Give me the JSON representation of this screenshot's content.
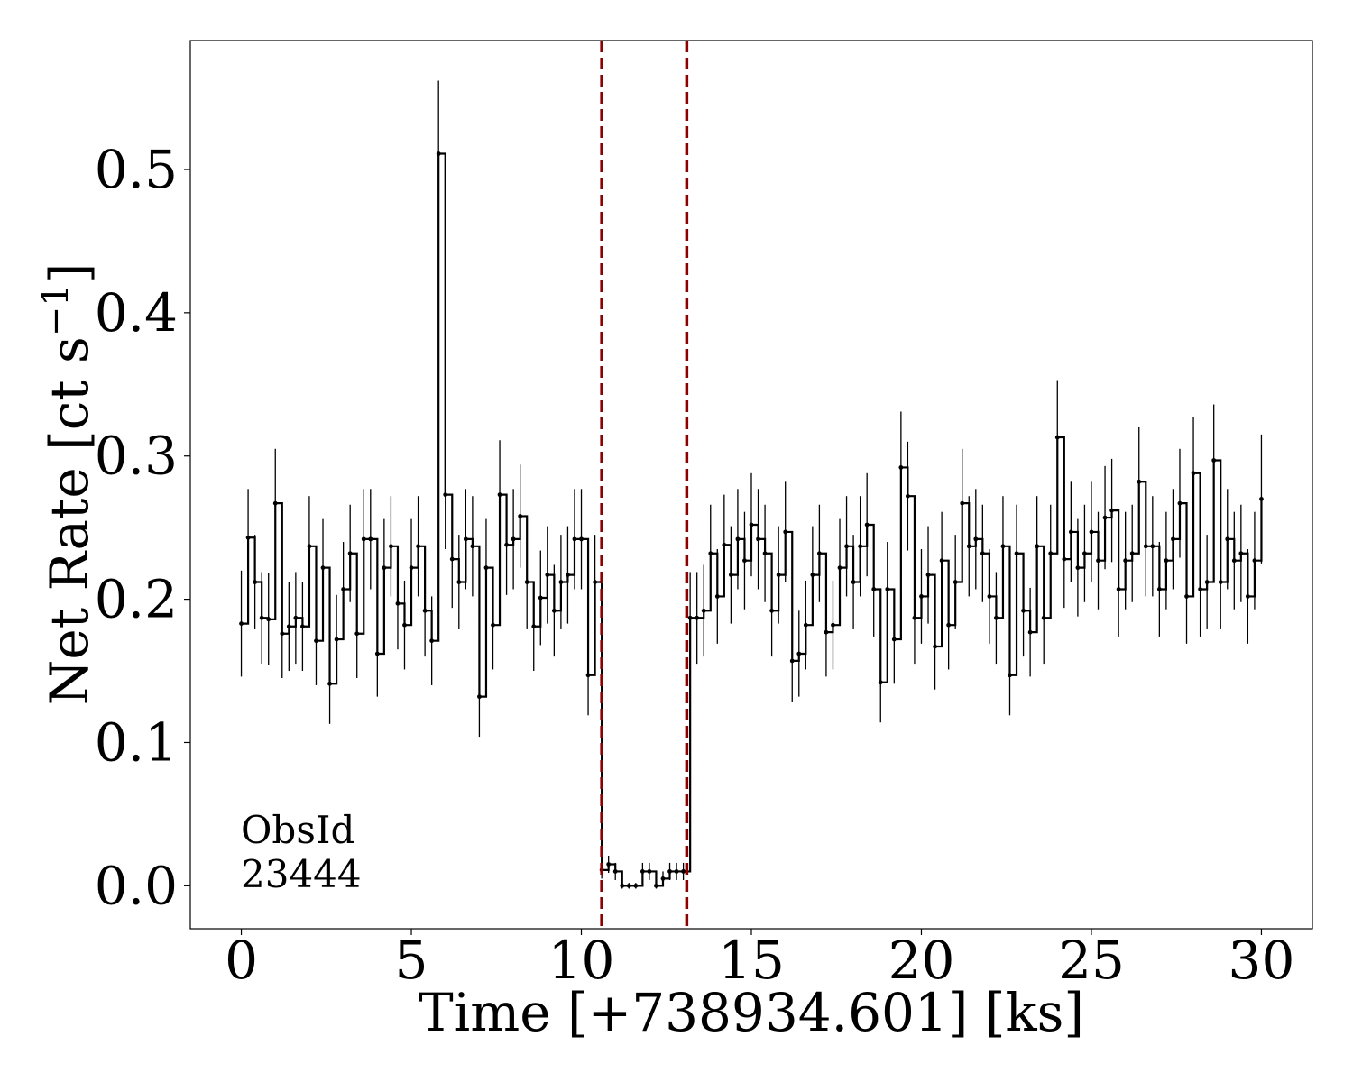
{
  "chart_data": {
    "type": "line",
    "xlabel": "Time [+738934.601] [ks]",
    "ylabel_main": "Net Rate [ct s",
    "ylabel_sup": "−1",
    "ylabel_end": "]",
    "xlim": [
      -1.5,
      31.5
    ],
    "ylim": [
      -0.03,
      0.59
    ],
    "xticks": [
      0,
      5,
      10,
      15,
      20,
      25,
      30
    ],
    "xtick_labels": [
      "0",
      "5",
      "10",
      "15",
      "20",
      "25",
      "30"
    ],
    "yticks": [
      0.0,
      0.1,
      0.2,
      0.3,
      0.4,
      0.5
    ],
    "ytick_labels": [
      "0.0",
      "0.1",
      "0.2",
      "0.3",
      "0.4",
      "0.5"
    ],
    "annotation": [
      "ObsId",
      "23444"
    ],
    "vlines": [
      10.6,
      13.1
    ],
    "colors": {
      "line": "#000000",
      "vline": "#8b0000"
    },
    "series": [
      {
        "values": [
          [
            0.0,
            0.183,
            0.037
          ],
          [
            0.2,
            0.243,
            0.034
          ],
          [
            0.4,
            0.212,
            0.033
          ],
          [
            0.6,
            0.187,
            0.032
          ],
          [
            0.8,
            0.186,
            0.032
          ],
          [
            1.0,
            0.267,
            0.038
          ],
          [
            1.2,
            0.176,
            0.031
          ],
          [
            1.4,
            0.181,
            0.031
          ],
          [
            1.6,
            0.187,
            0.032
          ],
          [
            1.8,
            0.181,
            0.031
          ],
          [
            2.0,
            0.237,
            0.035
          ],
          [
            2.2,
            0.171,
            0.031
          ],
          [
            2.4,
            0.222,
            0.034
          ],
          [
            2.6,
            0.141,
            0.028
          ],
          [
            2.8,
            0.172,
            0.031
          ],
          [
            3.0,
            0.207,
            0.033
          ],
          [
            3.2,
            0.232,
            0.034
          ],
          [
            3.4,
            0.176,
            0.031
          ],
          [
            3.6,
            0.242,
            0.035
          ],
          [
            3.8,
            0.242,
            0.035
          ],
          [
            4.0,
            0.162,
            0.03
          ],
          [
            4.2,
            0.222,
            0.034
          ],
          [
            4.4,
            0.237,
            0.035
          ],
          [
            4.6,
            0.197,
            0.032
          ],
          [
            4.8,
            0.182,
            0.031
          ],
          [
            5.0,
            0.222,
            0.034
          ],
          [
            5.2,
            0.237,
            0.035
          ],
          [
            5.4,
            0.192,
            0.032
          ],
          [
            5.6,
            0.171,
            0.031
          ],
          [
            5.8,
            0.511,
            0.051
          ],
          [
            6.0,
            0.273,
            0.038
          ],
          [
            6.2,
            0.228,
            0.034
          ],
          [
            6.4,
            0.212,
            0.033
          ],
          [
            6.6,
            0.242,
            0.035
          ],
          [
            6.8,
            0.237,
            0.035
          ],
          [
            7.0,
            0.132,
            0.028
          ],
          [
            7.2,
            0.222,
            0.034
          ],
          [
            7.4,
            0.182,
            0.031
          ],
          [
            7.6,
            0.273,
            0.038
          ],
          [
            7.8,
            0.238,
            0.035
          ],
          [
            8.0,
            0.242,
            0.035
          ],
          [
            8.2,
            0.258,
            0.036
          ],
          [
            8.4,
            0.212,
            0.033
          ],
          [
            8.6,
            0.181,
            0.031
          ],
          [
            8.8,
            0.201,
            0.033
          ],
          [
            9.0,
            0.217,
            0.034
          ],
          [
            9.2,
            0.192,
            0.032
          ],
          [
            9.4,
            0.212,
            0.033
          ],
          [
            9.6,
            0.217,
            0.034
          ],
          [
            9.8,
            0.242,
            0.035
          ],
          [
            10.0,
            0.242,
            0.035
          ],
          [
            10.2,
            0.147,
            0.028
          ],
          [
            10.4,
            0.212,
            0.033
          ],
          [
            10.6,
            0.011,
            0.006
          ],
          [
            10.8,
            0.015,
            0.006
          ],
          [
            11.0,
            0.01,
            0.006
          ],
          [
            11.2,
            0.0,
            0.002
          ],
          [
            11.4,
            0.0,
            0.002
          ],
          [
            11.6,
            0.0,
            0.002
          ],
          [
            11.8,
            0.01,
            0.006
          ],
          [
            12.0,
            0.01,
            0.006
          ],
          [
            12.2,
            0.0,
            0.002
          ],
          [
            12.4,
            0.005,
            0.005
          ],
          [
            12.6,
            0.01,
            0.006
          ],
          [
            12.8,
            0.01,
            0.006
          ],
          [
            13.0,
            0.01,
            0.006
          ],
          [
            13.2,
            0.187,
            0.032
          ],
          [
            13.4,
            0.187,
            0.032
          ],
          [
            13.6,
            0.192,
            0.032
          ],
          [
            13.8,
            0.232,
            0.034
          ],
          [
            14.0,
            0.202,
            0.033
          ],
          [
            14.2,
            0.238,
            0.035
          ],
          [
            14.4,
            0.217,
            0.034
          ],
          [
            14.6,
            0.242,
            0.035
          ],
          [
            14.8,
            0.227,
            0.034
          ],
          [
            15.0,
            0.252,
            0.036
          ],
          [
            15.2,
            0.242,
            0.035
          ],
          [
            15.4,
            0.232,
            0.034
          ],
          [
            15.6,
            0.192,
            0.032
          ],
          [
            15.8,
            0.217,
            0.034
          ],
          [
            16.0,
            0.247,
            0.035
          ],
          [
            16.2,
            0.157,
            0.029
          ],
          [
            16.4,
            0.162,
            0.03
          ],
          [
            16.6,
            0.182,
            0.031
          ],
          [
            16.8,
            0.217,
            0.034
          ],
          [
            17.0,
            0.232,
            0.034
          ],
          [
            17.2,
            0.177,
            0.031
          ],
          [
            17.4,
            0.182,
            0.031
          ],
          [
            17.6,
            0.222,
            0.034
          ],
          [
            17.8,
            0.237,
            0.035
          ],
          [
            18.0,
            0.212,
            0.033
          ],
          [
            18.2,
            0.237,
            0.035
          ],
          [
            18.4,
            0.252,
            0.036
          ],
          [
            18.6,
            0.207,
            0.033
          ],
          [
            18.8,
            0.142,
            0.028
          ],
          [
            19.0,
            0.207,
            0.033
          ],
          [
            19.2,
            0.172,
            0.031
          ],
          [
            19.4,
            0.292,
            0.039
          ],
          [
            19.6,
            0.272,
            0.038
          ],
          [
            19.8,
            0.187,
            0.032
          ],
          [
            20.0,
            0.202,
            0.033
          ],
          [
            20.2,
            0.217,
            0.034
          ],
          [
            20.4,
            0.167,
            0.03
          ],
          [
            20.6,
            0.227,
            0.034
          ],
          [
            20.8,
            0.182,
            0.031
          ],
          [
            21.0,
            0.212,
            0.033
          ],
          [
            21.2,
            0.267,
            0.038
          ],
          [
            21.4,
            0.237,
            0.035
          ],
          [
            21.6,
            0.242,
            0.035
          ],
          [
            21.8,
            0.232,
            0.034
          ],
          [
            22.0,
            0.202,
            0.033
          ],
          [
            22.2,
            0.187,
            0.032
          ],
          [
            22.4,
            0.237,
            0.035
          ],
          [
            22.6,
            0.147,
            0.028
          ],
          [
            22.8,
            0.232,
            0.034
          ],
          [
            23.0,
            0.192,
            0.032
          ],
          [
            23.2,
            0.177,
            0.031
          ],
          [
            23.4,
            0.237,
            0.035
          ],
          [
            23.6,
            0.187,
            0.032
          ],
          [
            23.8,
            0.232,
            0.034
          ],
          [
            24.0,
            0.313,
            0.04
          ],
          [
            24.2,
            0.228,
            0.034
          ],
          [
            24.4,
            0.247,
            0.035
          ],
          [
            24.6,
            0.222,
            0.034
          ],
          [
            24.8,
            0.232,
            0.034
          ],
          [
            25.0,
            0.247,
            0.035
          ],
          [
            25.2,
            0.227,
            0.034
          ],
          [
            25.4,
            0.257,
            0.036
          ],
          [
            25.6,
            0.262,
            0.036
          ],
          [
            25.8,
            0.207,
            0.033
          ],
          [
            26.0,
            0.227,
            0.034
          ],
          [
            26.2,
            0.232,
            0.034
          ],
          [
            26.4,
            0.282,
            0.038
          ],
          [
            26.6,
            0.237,
            0.035
          ],
          [
            26.8,
            0.237,
            0.035
          ],
          [
            27.0,
            0.207,
            0.033
          ],
          [
            27.2,
            0.227,
            0.034
          ],
          [
            27.4,
            0.242,
            0.035
          ],
          [
            27.6,
            0.267,
            0.038
          ],
          [
            27.8,
            0.202,
            0.033
          ],
          [
            28.0,
            0.288,
            0.039
          ],
          [
            28.2,
            0.207,
            0.033
          ],
          [
            28.4,
            0.212,
            0.033
          ],
          [
            28.6,
            0.297,
            0.039
          ],
          [
            28.8,
            0.212,
            0.033
          ],
          [
            29.0,
            0.242,
            0.035
          ],
          [
            29.2,
            0.227,
            0.034
          ],
          [
            29.4,
            0.232,
            0.034
          ],
          [
            29.6,
            0.202,
            0.033
          ],
          [
            29.8,
            0.227,
            0.034
          ],
          [
            30.0,
            0.27,
            0.045
          ]
        ]
      }
    ]
  }
}
